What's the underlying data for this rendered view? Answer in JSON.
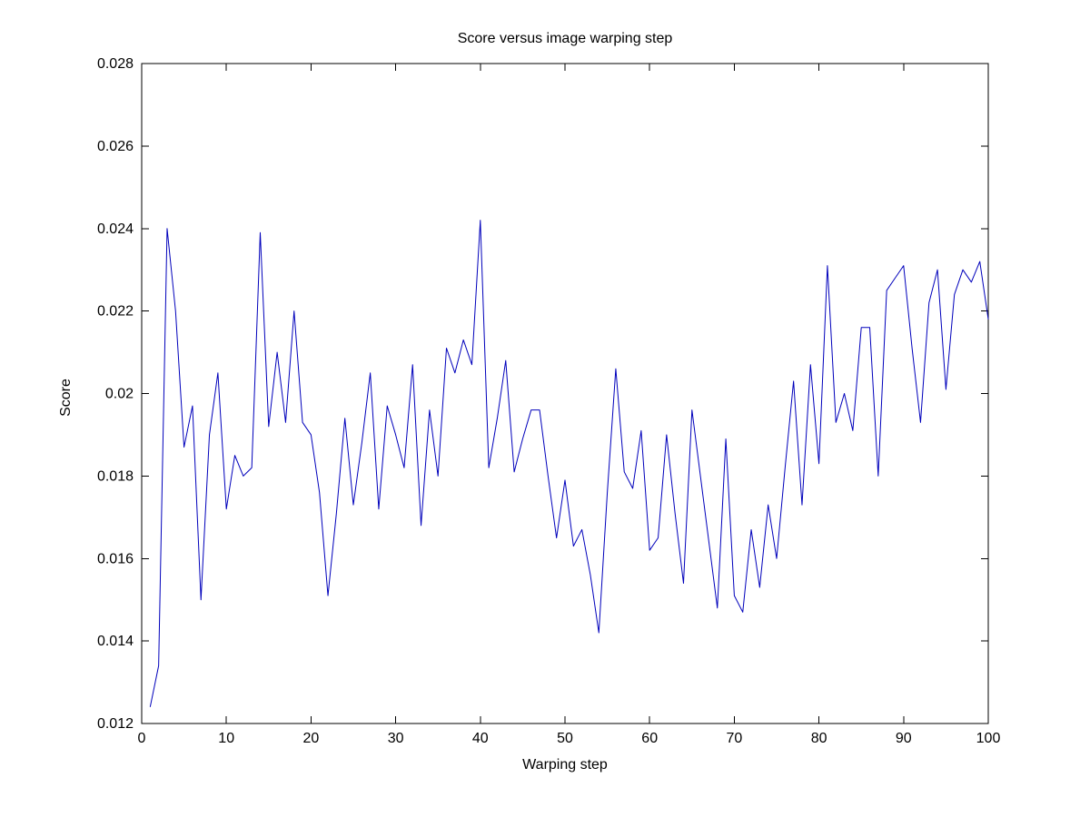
{
  "figure": {
    "background_color": "#ffffff",
    "axis_color": "#000000",
    "text_color": "#000000"
  },
  "chart_data": {
    "type": "line",
    "title": "Score versus image warping step",
    "xlabel": "Warping step",
    "ylabel": "Score",
    "xlim": [
      0,
      100
    ],
    "ylim": [
      0.012,
      0.028
    ],
    "grid": false,
    "legend": "none",
    "box": true,
    "tick_direction": "in",
    "line_color": "#0000BB",
    "line_width": 1,
    "x_tick_values": [
      0,
      10,
      20,
      30,
      40,
      50,
      60,
      70,
      80,
      90,
      100
    ],
    "x_tick_labels": [
      "0",
      "10",
      "20",
      "30",
      "40",
      "50",
      "60",
      "70",
      "80",
      "90",
      "100"
    ],
    "y_tick_values": [
      0.012,
      0.014,
      0.016,
      0.018,
      0.02,
      0.022,
      0.024,
      0.026,
      0.028
    ],
    "y_tick_labels": [
      "0.012",
      "0.014",
      "0.016",
      "0.018",
      "0.02",
      "0.022",
      "0.024",
      "0.026",
      "0.028"
    ],
    "x": [
      1,
      2,
      3,
      4,
      5,
      6,
      7,
      8,
      9,
      10,
      11,
      12,
      13,
      14,
      15,
      16,
      17,
      18,
      19,
      20,
      21,
      22,
      23,
      24,
      25,
      26,
      27,
      28,
      29,
      30,
      31,
      32,
      33,
      34,
      35,
      36,
      37,
      38,
      39,
      40,
      41,
      42,
      43,
      44,
      45,
      46,
      47,
      48,
      49,
      50,
      51,
      52,
      53,
      54,
      55,
      56,
      57,
      58,
      59,
      60,
      61,
      62,
      63,
      64,
      65,
      66,
      67,
      68,
      69,
      70,
      71,
      72,
      73,
      74,
      75,
      76,
      77,
      78,
      79,
      80,
      81,
      82,
      83,
      84,
      85,
      86,
      87,
      88,
      89,
      90,
      91,
      92,
      93,
      94,
      95,
      96,
      97,
      98,
      99,
      100
    ],
    "y": [
      0.0124,
      0.0134,
      0.024,
      0.022,
      0.0187,
      0.0197,
      0.015,
      0.019,
      0.0205,
      0.0172,
      0.0185,
      0.018,
      0.0182,
      0.0239,
      0.0192,
      0.021,
      0.0193,
      0.022,
      0.0193,
      0.019,
      0.0176,
      0.0151,
      0.0171,
      0.0194,
      0.0173,
      0.0188,
      0.0205,
      0.0172,
      0.0197,
      0.019,
      0.0182,
      0.0207,
      0.0168,
      0.0196,
      0.018,
      0.0211,
      0.0205,
      0.0213,
      0.0207,
      0.0242,
      0.0182,
      0.0194,
      0.0208,
      0.0181,
      0.0189,
      0.0196,
      0.0196,
      0.018,
      0.0165,
      0.0179,
      0.0163,
      0.0167,
      0.0156,
      0.0142,
      0.0176,
      0.0206,
      0.0181,
      0.0177,
      0.0191,
      0.0162,
      0.0165,
      0.019,
      0.0171,
      0.0154,
      0.0196,
      0.018,
      0.0164,
      0.0148,
      0.0189,
      0.0151,
      0.0147,
      0.0167,
      0.0153,
      0.0173,
      0.016,
      0.0182,
      0.0203,
      0.0173,
      0.0207,
      0.0183,
      0.0231,
      0.0193,
      0.02,
      0.0191,
      0.0216,
      0.0216,
      0.018,
      0.0225,
      0.0228,
      0.0231,
      0.0211,
      0.0193,
      0.0222,
      0.023,
      0.0201,
      0.0224,
      0.023,
      0.0227,
      0.0232,
      0.0218
    ]
  }
}
